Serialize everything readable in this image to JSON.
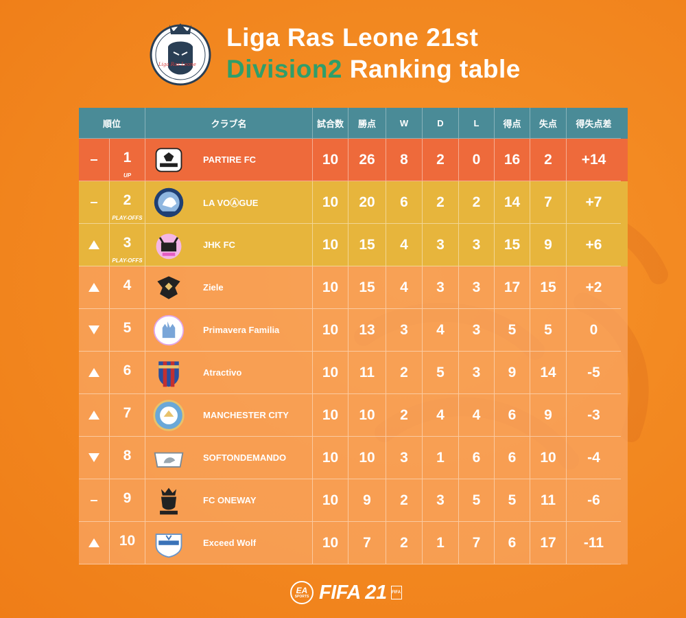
{
  "header": {
    "title_line1": "Liga Ras Leone 21st",
    "title_accent": "Division2",
    "title_rest": " Ranking table",
    "logo_text": "Liga Ras Leone",
    "accent_color": "#2f9e6a"
  },
  "table": {
    "columns": {
      "rank": "順位",
      "club": "クラブ名",
      "played": "試合数",
      "points": "勝点",
      "w": "W",
      "d": "D",
      "l": "L",
      "gf": "得点",
      "ga": "失点",
      "gd": "得失点差"
    },
    "rows": [
      {
        "move": "same",
        "rank": "1",
        "sub": "UP",
        "tier": "up",
        "club": "PARTIRE FC",
        "crest": "shield-crest-icon",
        "played": "10",
        "points": "26",
        "w": "8",
        "d": "2",
        "l": "0",
        "gf": "16",
        "ga": "2",
        "gd": "+14"
      },
      {
        "move": "same",
        "rank": "2",
        "sub": "PLAY-OFFS",
        "tier": "po",
        "club": "LA VOⒶGUE",
        "crest": "round-crest-icon",
        "played": "10",
        "points": "20",
        "w": "6",
        "d": "2",
        "l": "2",
        "gf": "14",
        "ga": "7",
        "gd": "+7"
      },
      {
        "move": "up",
        "rank": "3",
        "sub": "PLAY-OFFS",
        "tier": "po",
        "club": "JHK FC",
        "crest": "cat-crest-icon",
        "played": "10",
        "points": "15",
        "w": "4",
        "d": "3",
        "l": "3",
        "gf": "15",
        "ga": "9",
        "gd": "+6"
      },
      {
        "move": "up",
        "rank": "4",
        "sub": "",
        "tier": "std",
        "club": "Ziele",
        "crest": "phoenix-crest-icon",
        "played": "10",
        "points": "15",
        "w": "4",
        "d": "3",
        "l": "3",
        "gf": "17",
        "ga": "15",
        "gd": "+2"
      },
      {
        "move": "down",
        "rank": "5",
        "sub": "",
        "tier": "std",
        "club": "Primavera Familia",
        "crest": "cathedral-crest-icon",
        "played": "10",
        "points": "13",
        "w": "3",
        "d": "4",
        "l": "3",
        "gf": "5",
        "ga": "5",
        "gd": "0"
      },
      {
        "move": "up",
        "rank": "6",
        "sub": "",
        "tier": "std",
        "club": "Atractivo",
        "crest": "striped-shield-icon",
        "played": "10",
        "points": "11",
        "w": "2",
        "d": "5",
        "l": "3",
        "gf": "9",
        "ga": "14",
        "gd": "-5"
      },
      {
        "move": "up",
        "rank": "7",
        "sub": "",
        "tier": "std",
        "club": "MANCHESTER CITY",
        "crest": "city-crest-icon",
        "played": "10",
        "points": "10",
        "w": "2",
        "d": "4",
        "l": "4",
        "gf": "6",
        "ga": "9",
        "gd": "-3"
      },
      {
        "move": "down",
        "rank": "8",
        "sub": "",
        "tier": "std",
        "club": "SOFTONDEMANDO",
        "crest": "wolf-badge-icon",
        "played": "10",
        "points": "10",
        "w": "3",
        "d": "1",
        "l": "6",
        "gf": "6",
        "ga": "10",
        "gd": "-4"
      },
      {
        "move": "same",
        "rank": "9",
        "sub": "",
        "tier": "std",
        "club": "FC ONEWAY",
        "crest": "lion-crest-icon",
        "played": "10",
        "points": "9",
        "w": "2",
        "d": "3",
        "l": "5",
        "gf": "5",
        "ga": "11",
        "gd": "-6"
      },
      {
        "move": "up",
        "rank": "10",
        "sub": "",
        "tier": "std",
        "club": "Exceed Wolf",
        "crest": "exceed-crest-icon",
        "played": "10",
        "points": "7",
        "w": "2",
        "d": "1",
        "l": "7",
        "gf": "6",
        "ga": "17",
        "gd": "-11"
      }
    ],
    "colors": {
      "header": "#4a8b97",
      "up": "#ee6a3b",
      "po": "#e7b53c",
      "std": "#f8a460"
    }
  },
  "footer": {
    "ea_text": "EA",
    "ea_sub": "SPORTS",
    "game": "FIFA 21",
    "badge": "FIFA"
  }
}
